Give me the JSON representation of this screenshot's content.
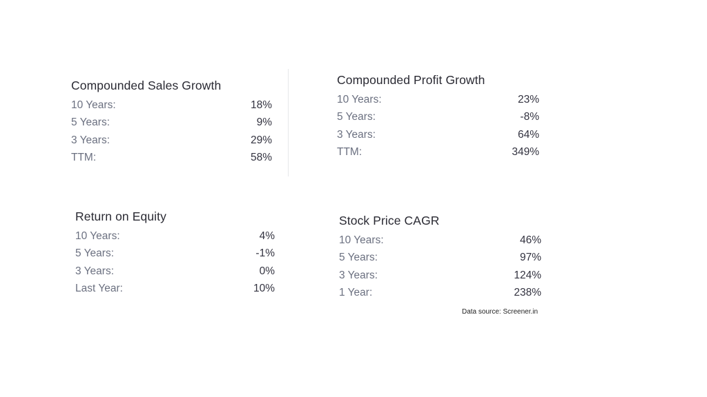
{
  "sales_growth": {
    "title": "Compounded Sales Growth",
    "rows": [
      {
        "label": "10 Years:",
        "value": "18%"
      },
      {
        "label": "5 Years:",
        "value": "9%"
      },
      {
        "label": "3 Years:",
        "value": "29%"
      },
      {
        "label": "TTM:",
        "value": "58%"
      }
    ]
  },
  "profit_growth": {
    "title": "Compounded Profit Growth",
    "rows": [
      {
        "label": "10 Years:",
        "value": "23%"
      },
      {
        "label": "5 Years:",
        "value": "-8%"
      },
      {
        "label": "3 Years:",
        "value": "64%"
      },
      {
        "label": "TTM:",
        "value": "349%"
      }
    ]
  },
  "return_on_equity": {
    "title": "Return on Equity",
    "rows": [
      {
        "label": "10 Years:",
        "value": "4%"
      },
      {
        "label": "5 Years:",
        "value": "-1%"
      },
      {
        "label": "3 Years:",
        "value": "0%"
      },
      {
        "label": "Last Year:",
        "value": "10%"
      }
    ]
  },
  "stock_price_cagr": {
    "title": "Stock Price CAGR",
    "rows": [
      {
        "label": "10 Years:",
        "value": "46%"
      },
      {
        "label": "5 Years:",
        "value": "97%"
      },
      {
        "label": "3 Years:",
        "value": "124%"
      },
      {
        "label": "1 Year:",
        "value": "238%"
      }
    ]
  },
  "footer": {
    "source": "Data source: Screener.in"
  }
}
